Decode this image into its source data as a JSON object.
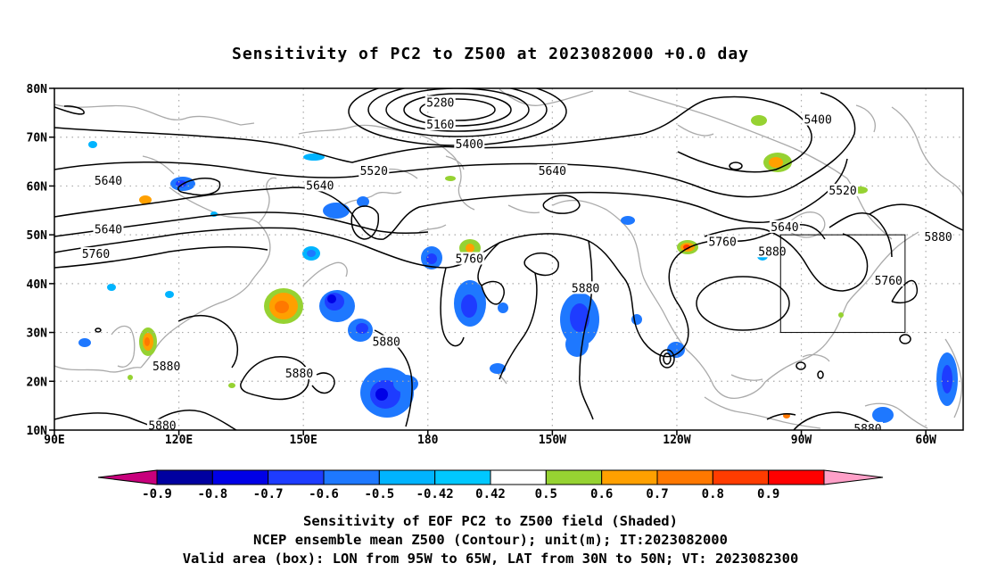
{
  "title": "Sensitivity of PC2 to Z500 at 2023082000 +0.0 day",
  "map": {
    "lat_ticks": [
      {
        "value": 80,
        "label": "80N"
      },
      {
        "value": 70,
        "label": "70N"
      },
      {
        "value": 60,
        "label": "60N"
      },
      {
        "value": 50,
        "label": "50N"
      },
      {
        "value": 40,
        "label": "40N"
      },
      {
        "value": 30,
        "label": "30N"
      },
      {
        "value": 20,
        "label": "20N"
      },
      {
        "value": 10,
        "label": "10N"
      }
    ],
    "lon_ticks": [
      {
        "value": 90,
        "label": "90E"
      },
      {
        "value": 120,
        "label": "120E"
      },
      {
        "value": 150,
        "label": "150E"
      },
      {
        "value": 180,
        "label": "180"
      },
      {
        "value": 210,
        "label": "150W"
      },
      {
        "value": 240,
        "label": "120W"
      },
      {
        "value": 270,
        "label": "90W"
      },
      {
        "value": 300,
        "label": "60W"
      }
    ],
    "lon_range": [
      90,
      309
    ],
    "lat_range": [
      10,
      80
    ],
    "valid_box": {
      "lon": [
        265,
        295
      ],
      "lat": [
        30,
        50
      ]
    },
    "contour_labels": [
      {
        "text": "5280",
        "lon": 183,
        "lat": 77
      },
      {
        "text": "5160",
        "lon": 183,
        "lat": 72.5
      },
      {
        "text": "5400",
        "lon": 190,
        "lat": 68.5
      },
      {
        "text": "5400",
        "lon": 274,
        "lat": 73.5
      },
      {
        "text": "5520",
        "lon": 167,
        "lat": 63
      },
      {
        "text": "5640",
        "lon": 210,
        "lat": 63
      },
      {
        "text": "5640",
        "lon": 103,
        "lat": 61
      },
      {
        "text": "5640",
        "lon": 154,
        "lat": 60
      },
      {
        "text": "5520",
        "lon": 280,
        "lat": 59
      },
      {
        "text": "5640",
        "lon": 266,
        "lat": 51.5
      },
      {
        "text": "5640",
        "lon": 103,
        "lat": 51
      },
      {
        "text": "5760",
        "lon": 251,
        "lat": 48.5
      },
      {
        "text": "5880",
        "lon": 303,
        "lat": 49.5
      },
      {
        "text": "5760",
        "lon": 100,
        "lat": 46
      },
      {
        "text": "5760",
        "lon": 190,
        "lat": 45
      },
      {
        "text": "5880",
        "lon": 263,
        "lat": 46.5
      },
      {
        "text": "5760",
        "lon": 291,
        "lat": 40.5
      },
      {
        "text": "5880",
        "lon": 218,
        "lat": 39
      },
      {
        "text": "5880",
        "lon": 170,
        "lat": 28
      },
      {
        "text": "5880",
        "lon": 117,
        "lat": 23
      },
      {
        "text": "5880",
        "lon": 149,
        "lat": 21.5
      },
      {
        "text": "5880",
        "lon": 116,
        "lat": 10.8
      },
      {
        "text": "5880",
        "lon": 286,
        "lat": 10.2
      }
    ]
  },
  "colorbar": {
    "labels": [
      "-0.9",
      "-0.8",
      "-0.7",
      "-0.6",
      "-0.5",
      "-0.42",
      "0.42",
      "0.5",
      "0.6",
      "0.7",
      "0.8",
      "0.9"
    ],
    "colors": [
      "#c8007c",
      "#0000a0",
      "#0000e6",
      "#1e3cff",
      "#1e78ff",
      "#00b4ff",
      "#00c8ff",
      "#ffffff",
      "#96d232",
      "#ffa000",
      "#ff7800",
      "#ff3c00",
      "#ff0000",
      "#ffa0c8"
    ]
  },
  "caption": {
    "line1": "Sensitivity of EOF PC2 to Z500 field (Shaded)",
    "line2": "NCEP ensemble mean Z500 (Contour); unit(m); IT:2023082000",
    "line3": "Valid area (box): LON from 95W to 65W, LAT from 30N to 50N; VT: 2023082300"
  }
}
